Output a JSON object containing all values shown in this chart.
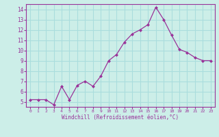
{
  "x": [
    0,
    1,
    2,
    3,
    4,
    5,
    6,
    7,
    8,
    9,
    10,
    11,
    12,
    13,
    14,
    15,
    16,
    17,
    18,
    19,
    20,
    21,
    22,
    23
  ],
  "y": [
    5.2,
    5.2,
    5.2,
    4.7,
    6.5,
    5.2,
    6.6,
    7.0,
    6.5,
    7.5,
    9.0,
    9.6,
    10.8,
    11.6,
    12.0,
    12.5,
    14.2,
    13.0,
    11.5,
    10.1,
    9.8,
    9.3,
    9.0,
    9.0
  ],
  "line_color": "#993399",
  "marker": "D",
  "marker_size": 2,
  "bg_color": "#cceee8",
  "grid_color": "#aadddd",
  "xlabel": "Windchill (Refroidissement éolien,°C)",
  "xlabel_color": "#993399",
  "tick_color": "#993399",
  "ylim": [
    4.5,
    14.5
  ],
  "xlim": [
    -0.5,
    23.5
  ],
  "yticks": [
    5,
    6,
    7,
    8,
    9,
    10,
    11,
    12,
    13,
    14
  ],
  "xticks": [
    0,
    1,
    2,
    3,
    4,
    5,
    6,
    7,
    8,
    9,
    10,
    11,
    12,
    13,
    14,
    15,
    16,
    17,
    18,
    19,
    20,
    21,
    22,
    23
  ],
  "spine_color": "#993399",
  "spine_bottom_color": "#993399"
}
